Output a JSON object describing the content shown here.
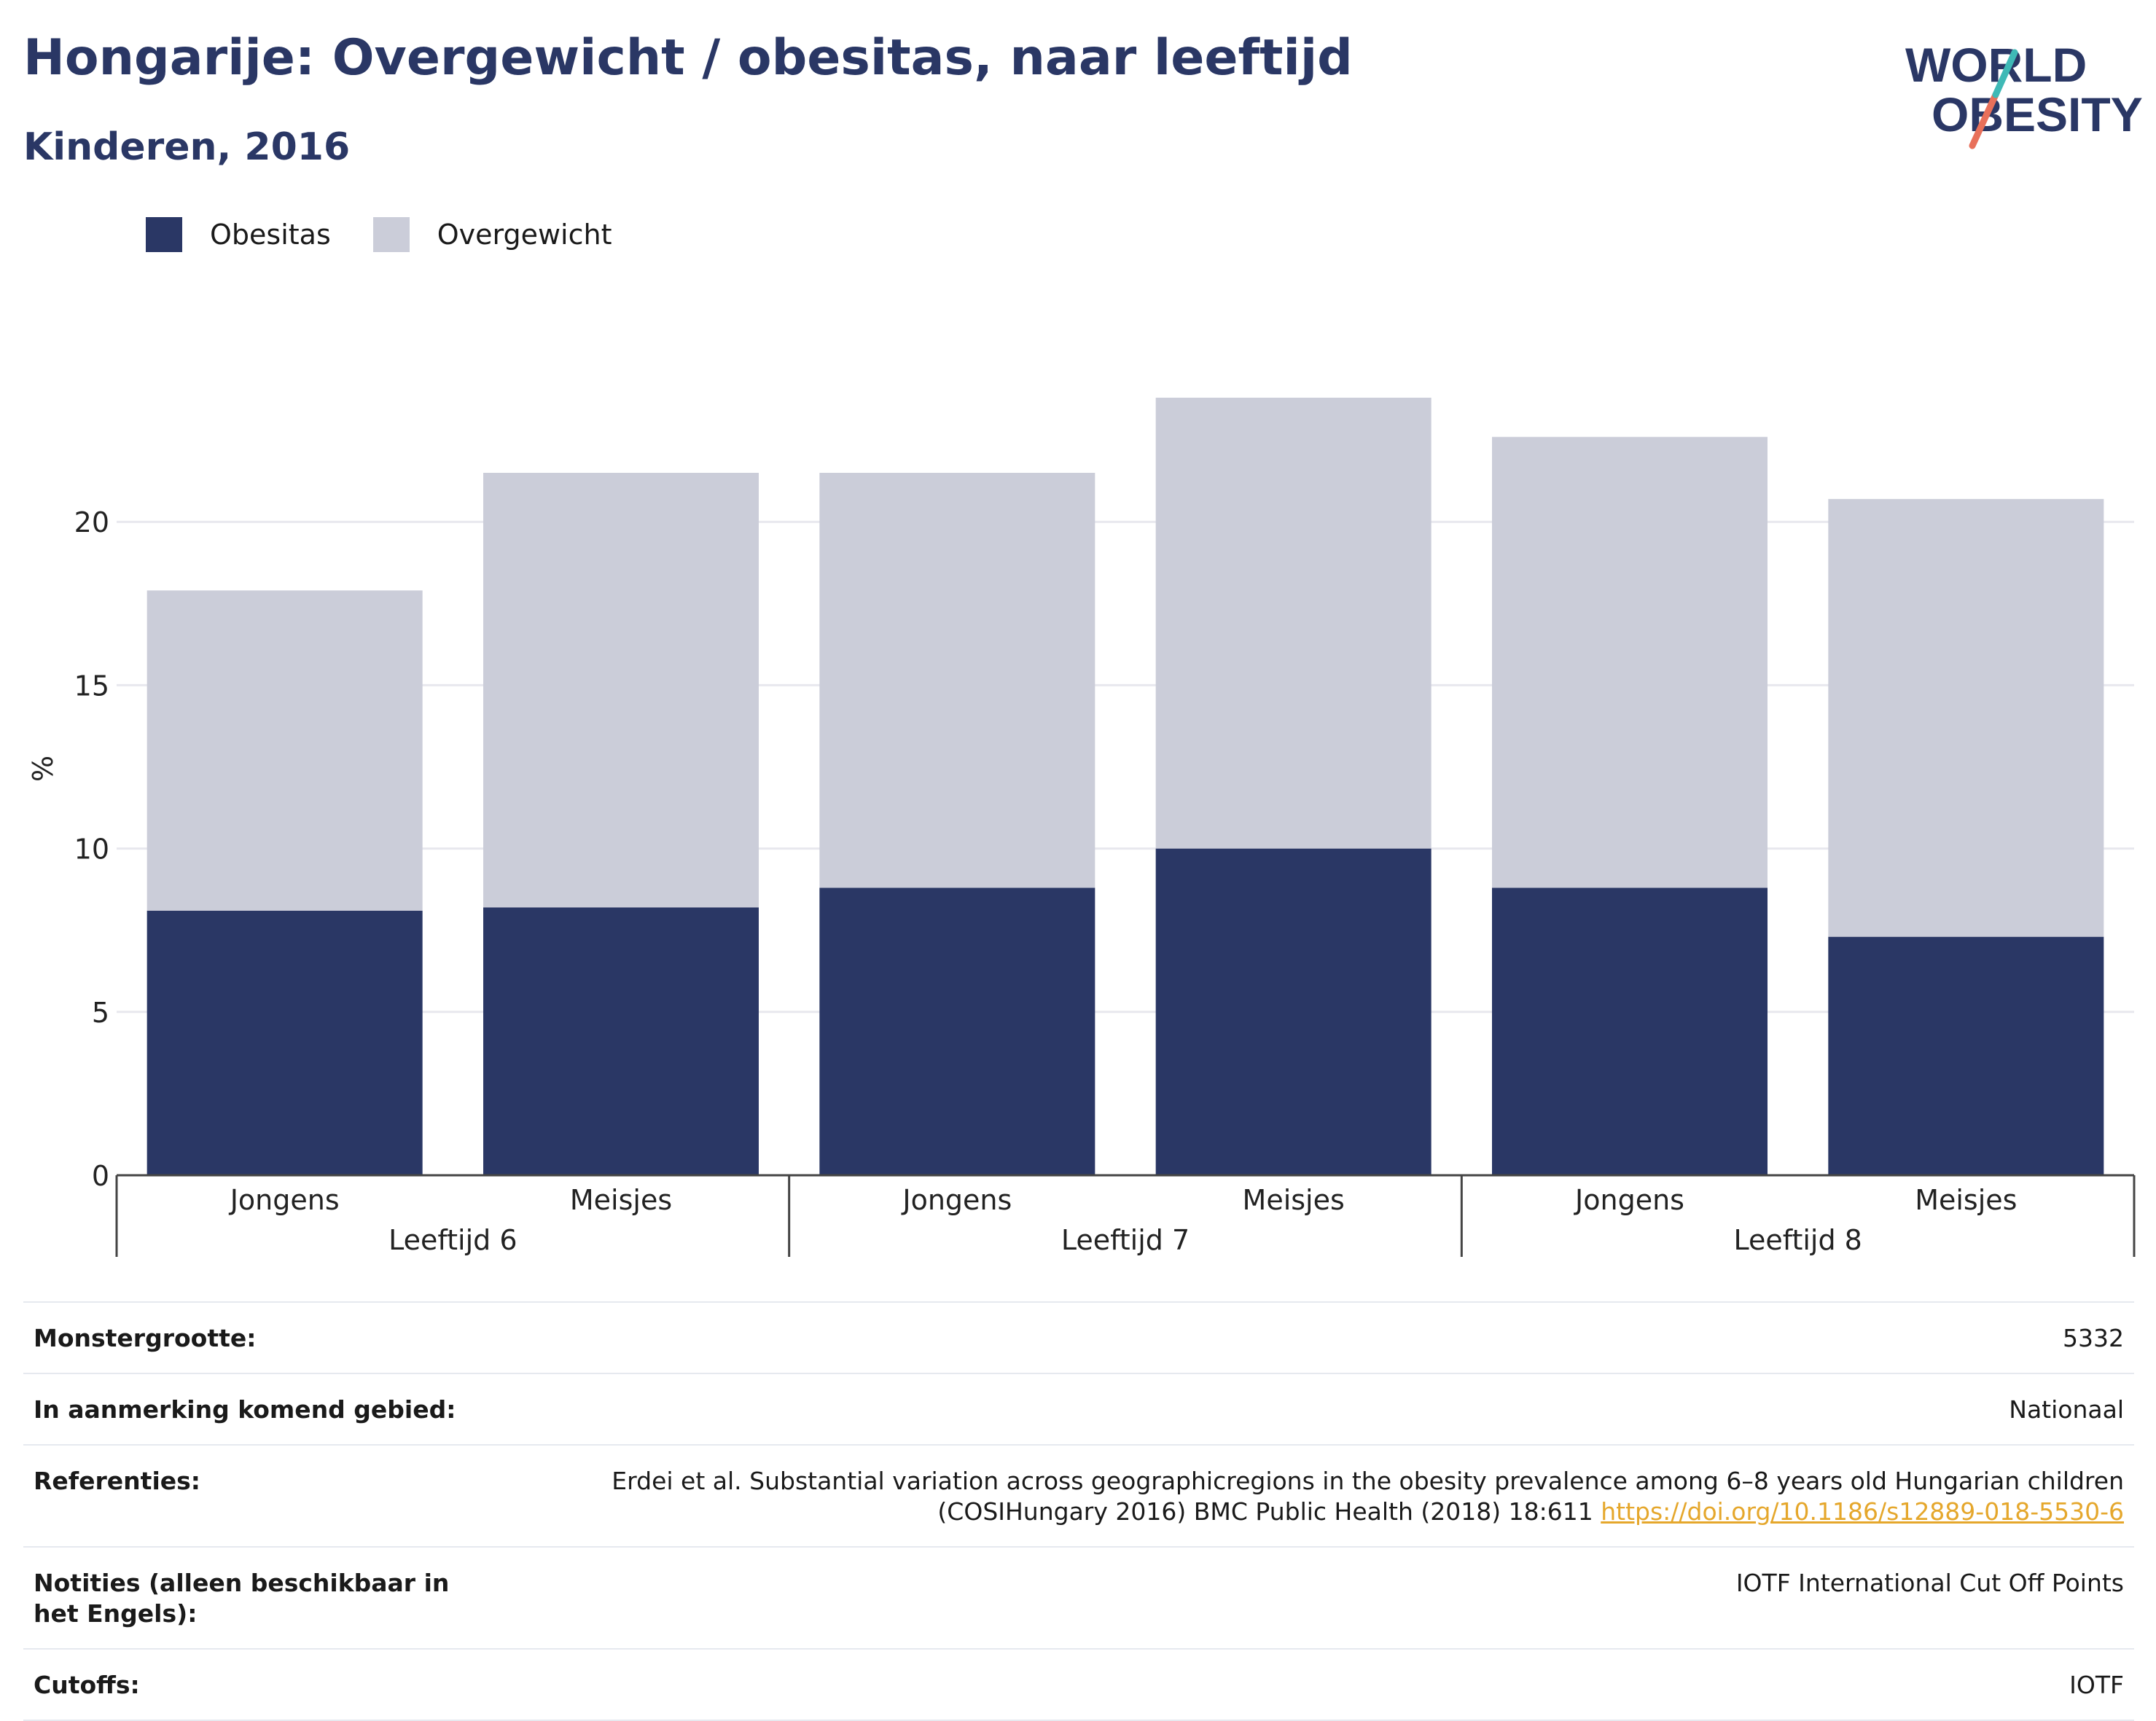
{
  "title": "Hongarije: Overgewicht / obesitas, naar leeftijd",
  "subtitle": "Kinderen, 2016",
  "logo": {
    "line1": "WORLD",
    "line2": "OBESITY"
  },
  "legend": [
    {
      "label": "Obesitas",
      "color": "#2a3765"
    },
    {
      "label": "Overgewicht",
      "color": "#cbcdd9"
    }
  ],
  "chart_data": {
    "type": "bar",
    "stacked": true,
    "ylabel": "%",
    "ylim": [
      0,
      25
    ],
    "yticks": [
      0,
      5,
      10,
      15,
      20
    ],
    "grid": true,
    "legend_position": "top-left",
    "groups": [
      "Leeftijd 6",
      "Leeftijd 7",
      "Leeftijd 8"
    ],
    "categories": [
      "Jongens",
      "Meisjes",
      "Jongens",
      "Meisjes",
      "Jongens",
      "Meisjes"
    ],
    "series": [
      {
        "name": "Obesitas",
        "color": "#2a3765",
        "values": [
          8.1,
          8.2,
          8.8,
          10.0,
          8.8,
          7.3
        ]
      },
      {
        "name": "Overgewicht",
        "color": "#cbcdd9",
        "values": [
          9.8,
          13.3,
          12.7,
          13.8,
          13.8,
          13.4
        ]
      }
    ]
  },
  "info": {
    "sample_label": "Monstergrootte:",
    "sample_value": "5332",
    "area_label": "In aanmerking komend gebied:",
    "area_value": "Nationaal",
    "refs_label": "Referenties:",
    "refs_text": "Erdei et al. Substantial variation across geographicregions in the obesity prevalence among 6–8 years old Hungarian children (COSIHungary 2016) BMC Public Health (2018) 18:611",
    "refs_link": "https://doi.org/10.1186/s12889-018-5530-6",
    "notes_label": "Notities (alleen beschikbaar in het Engels):",
    "notes_value": "IOTF International Cut Off Points",
    "cutoffs_label": "Cutoffs:",
    "cutoffs_value": "IOTF"
  }
}
